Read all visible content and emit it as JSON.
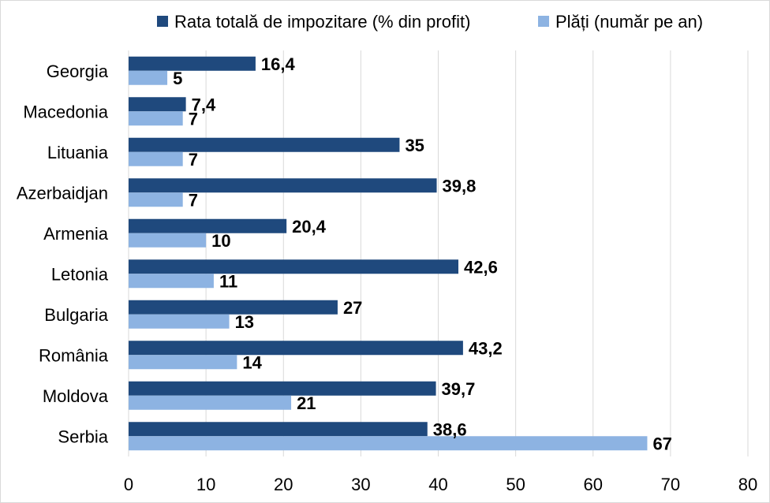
{
  "chart_data": {
    "type": "bar",
    "orientation": "horizontal",
    "categories": [
      "Georgia",
      "Macedonia",
      "Lituania",
      "Azerbaidjan",
      "Armenia",
      "Letonia",
      "Bulgaria",
      "România",
      "Moldova",
      "Serbia"
    ],
    "series": [
      {
        "name": "Rata totală de impozitare (% din profit)",
        "color": "#1f497d",
        "values": [
          16.4,
          7.4,
          35,
          39.8,
          20.4,
          42.6,
          27,
          43.2,
          39.7,
          38.6
        ],
        "labels": [
          "16,4",
          "7,4",
          "35",
          "39,8",
          "20,4",
          "42,6",
          "27",
          "43,2",
          "39,7",
          "38,6"
        ]
      },
      {
        "name": "Plăți (număr pe an)",
        "color": "#8db3e2",
        "values": [
          5,
          7,
          7,
          7,
          10,
          11,
          13,
          14,
          21,
          67
        ],
        "labels": [
          "5",
          "7",
          "7",
          "7",
          "10",
          "11",
          "13",
          "14",
          "21",
          "67"
        ]
      }
    ],
    "xlim": [
      0,
      80
    ],
    "xticks": [
      "0",
      "10",
      "20",
      "30",
      "40",
      "50",
      "60",
      "70",
      "80"
    ],
    "grid": true,
    "legend": "top",
    "title": "",
    "xlabel": "",
    "ylabel": ""
  }
}
